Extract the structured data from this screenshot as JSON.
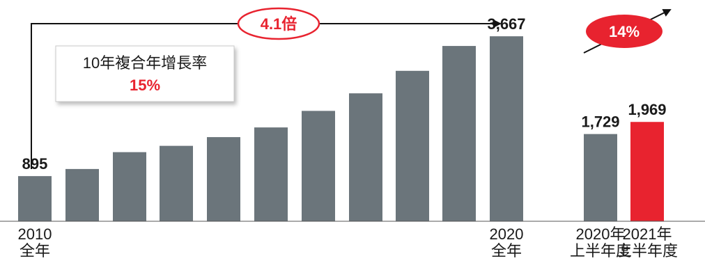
{
  "chart_data": {
    "type": "bar",
    "categories": [
      "2010\n全年",
      "",
      "",
      "",
      "",
      "",
      "",
      "",
      "",
      "",
      "2020\n全年",
      "2020年\n上半年度",
      "2021年\n上半年度"
    ],
    "values": [
      895,
      1036,
      1370,
      1495,
      1668,
      1860,
      2188,
      2536,
      2982,
      3475,
      3667,
      1729,
      1969
    ],
    "value_labels": [
      "895",
      "",
      "",
      "",
      "",
      "",
      "",
      "",
      "",
      "",
      "3,667",
      "1,729",
      "1,969"
    ],
    "ylim": [
      0,
      4000
    ],
    "grid": false,
    "colors": {
      "bar": "#6b757b",
      "highlight": "#e8232f"
    },
    "highlight_index": 12,
    "annotations": {
      "growth_badge": "4.1倍",
      "cagr_label": "10年複合年增長率",
      "cagr_value": "15%",
      "yoy_badge": "14%"
    }
  }
}
